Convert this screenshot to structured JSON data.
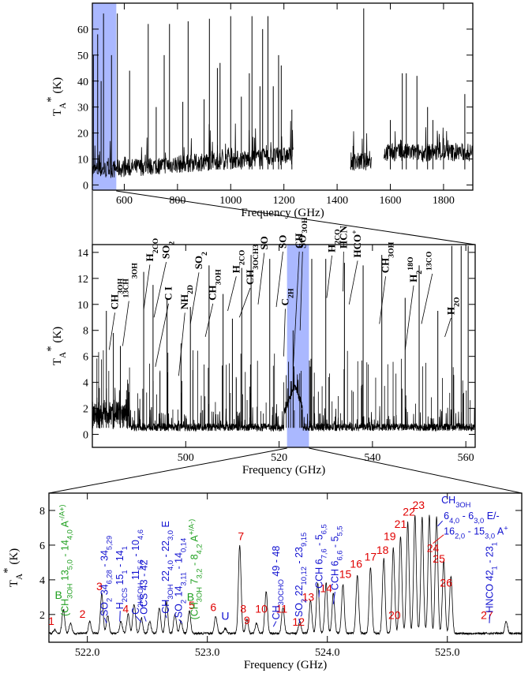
{
  "colors": {
    "highlight": "#aab8ff",
    "red": "#e00000",
    "blue": "#1010d0",
    "green": "#20a020"
  },
  "chart_data": [
    {
      "type": "line",
      "ylabel": "T_A* (K)",
      "xlabel": "Frequency (GHz)",
      "xlim": [
        480,
        1910
      ],
      "ylim": [
        -2,
        70
      ],
      "yticks": [
        0,
        10,
        20,
        30,
        40,
        50,
        60
      ],
      "xticks": [
        600,
        800,
        1000,
        1200,
        1400,
        1600,
        1800
      ],
      "highlight": [
        480,
        570
      ],
      "segments": [
        [
          480,
          1235
        ],
        [
          1450,
          1530
        ],
        [
          1575,
          1910
        ]
      ],
      "lines": [
        [
          484,
          50
        ],
        [
          500,
          58
        ],
        [
          513,
          40
        ],
        [
          522,
          66
        ],
        [
          552,
          50
        ],
        [
          574,
          66
        ],
        [
          620,
          44
        ],
        [
          690,
          62
        ],
        [
          720,
          30
        ],
        [
          750,
          50
        ],
        [
          770,
          62
        ],
        [
          820,
          32
        ],
        [
          840,
          63
        ],
        [
          900,
          33
        ],
        [
          920,
          64
        ],
        [
          950,
          45
        ],
        [
          960,
          47
        ],
        [
          1000,
          65
        ],
        [
          1040,
          34
        ],
        [
          1070,
          43
        ],
        [
          1080,
          65
        ],
        [
          1110,
          38
        ],
        [
          1120,
          60
        ],
        [
          1140,
          65
        ],
        [
          1160,
          38
        ],
        [
          1180,
          50
        ],
        [
          1190,
          46
        ],
        [
          1230,
          29
        ],
        [
          1460,
          15
        ],
        [
          1500,
          68
        ],
        [
          1600,
          25
        ],
        [
          1645,
          43
        ],
        [
          1660,
          43
        ],
        [
          1700,
          42
        ],
        [
          1740,
          30
        ],
        [
          1760,
          25
        ],
        [
          1800,
          18
        ],
        [
          1880,
          35
        ]
      ]
    },
    {
      "type": "line",
      "ylabel": "T_A* (K)",
      "xlabel": "Frequency (GHz)",
      "xlim": [
        480,
        562
      ],
      "ylim": [
        -1,
        14.6
      ],
      "yticks": [
        0,
        2,
        4,
        6,
        8,
        10,
        12,
        14
      ],
      "xticks": [
        500,
        520,
        540,
        560
      ],
      "highlight": [
        521.7,
        526.4
      ],
      "species": [
        "CH3OH",
        "13CH3OH",
        "H2CO",
        "SO2",
        "C I",
        "NH2D",
        "SO2",
        "CH3OH",
        "H2CO",
        "CH3OCH3",
        "SO",
        "SO",
        "C2H",
        "CH3OH",
        "SO",
        "H2CO",
        "HCN",
        "HCO+",
        "CH3OH",
        "H2 18O",
        "13CO",
        "H2O"
      ],
      "lines": [
        [
          483,
          9.5
        ],
        [
          484.5,
          7.8
        ],
        [
          486,
          6.8
        ],
        [
          491,
          12.5
        ],
        [
          493,
          11.5
        ],
        [
          496,
          10.5
        ],
        [
          499,
          7.0
        ],
        [
          501,
          9.8
        ],
        [
          505,
          13.0
        ],
        [
          508,
          10.8
        ],
        [
          510,
          8.9
        ],
        [
          512,
          12.8
        ],
        [
          514,
          13.8
        ],
        [
          518,
          13.5
        ],
        [
          523,
          8.0
        ],
        [
          527,
          13.5
        ],
        [
          530,
          13.5
        ],
        [
          534,
          13.2
        ],
        [
          538,
          13.0
        ],
        [
          542,
          13.8
        ],
        [
          547,
          10.5
        ],
        [
          550,
          13.0
        ],
        [
          554,
          9.5
        ],
        [
          557,
          14.5
        ],
        [
          559,
          14.5
        ],
        [
          560.5,
          14.5
        ]
      ]
    },
    {
      "type": "line",
      "ylabel": "T_A* (K)",
      "xlabel": "Frequency (GHz)",
      "xlim": [
        521.68,
        525.62
      ],
      "ylim": [
        0.4,
        9.0
      ],
      "yticks": [
        2,
        4,
        6,
        8
      ],
      "xticks": [
        522.0,
        523.0,
        524.0,
        525.0
      ],
      "peaks": [
        [
          521.73,
          1.1
        ],
        [
          521.8,
          2.3
        ],
        [
          521.86,
          1.5
        ],
        [
          522.02,
          1.6
        ],
        [
          522.12,
          3.2
        ],
        [
          522.17,
          1.9
        ],
        [
          522.28,
          1.6
        ],
        [
          522.34,
          2.0
        ],
        [
          522.39,
          2.6
        ],
        [
          522.45,
          1.8
        ],
        [
          522.52,
          1.6
        ],
        [
          522.6,
          2.4
        ],
        [
          522.66,
          2.7
        ],
        [
          522.73,
          2.0
        ],
        [
          522.78,
          1.6
        ],
        [
          522.85,
          2.2
        ],
        [
          523.07,
          1.9
        ],
        [
          523.15,
          1.2
        ],
        [
          523.27,
          6.0
        ],
        [
          523.33,
          1.7
        ],
        [
          523.41,
          1.5
        ],
        [
          523.49,
          3.3
        ],
        [
          523.63,
          2.4
        ],
        [
          523.77,
          1.6
        ],
        [
          523.86,
          2.8
        ],
        [
          523.92,
          3.8
        ],
        [
          523.99,
          3.8
        ],
        [
          524.05,
          3.2
        ],
        [
          524.13,
          3.7
        ],
        [
          524.25,
          4.3
        ],
        [
          524.36,
          4.7
        ],
        [
          524.47,
          5.2
        ],
        [
          524.55,
          5.8
        ],
        [
          524.61,
          6.5
        ],
        [
          524.67,
          7.3
        ],
        [
          524.73,
          7.7
        ],
        [
          524.79,
          7.6
        ],
        [
          524.85,
          7.7
        ],
        [
          524.91,
          7.6
        ],
        [
          524.97,
          5.1
        ],
        [
          525.03,
          4.2
        ],
        [
          525.49,
          1.6
        ]
      ],
      "red_labels": [
        [
          521.7,
          1.4,
          "1"
        ],
        [
          521.96,
          1.8,
          "2"
        ],
        [
          522.1,
          3.4,
          "3"
        ],
        [
          522.32,
          2.1,
          "4"
        ],
        [
          522.87,
          2.3,
          "5"
        ],
        [
          523.05,
          2.2,
          "6"
        ],
        [
          523.28,
          6.3,
          "7"
        ],
        [
          523.3,
          2.1,
          "8"
        ],
        [
          523.33,
          1.45,
          "9"
        ],
        [
          523.45,
          2.1,
          "10"
        ],
        [
          523.62,
          2.1,
          "11"
        ],
        [
          523.76,
          1.35,
          "12"
        ],
        [
          523.84,
          2.8,
          "13"
        ],
        [
          523.99,
          3.3,
          "14"
        ],
        [
          524.15,
          4.1,
          "15"
        ],
        [
          524.24,
          4.7,
          "16"
        ],
        [
          524.36,
          5.1,
          "17"
        ],
        [
          524.46,
          5.5,
          "18"
        ],
        [
          524.52,
          6.3,
          "19"
        ],
        [
          524.56,
          1.75,
          "20"
        ],
        [
          524.61,
          7.0,
          "21"
        ],
        [
          524.68,
          7.7,
          "22"
        ],
        [
          524.76,
          8.1,
          "23"
        ],
        [
          524.88,
          5.6,
          "24"
        ],
        [
          524.93,
          5.0,
          "25"
        ],
        [
          524.99,
          3.6,
          "26"
        ],
        [
          525.33,
          1.75,
          "27"
        ]
      ],
      "u_label": [
        523.15,
        1.7,
        "U"
      ],
      "b_labels": [
        [
          521.76,
          2.9,
          "B"
        ],
        [
          522.86,
          2.8,
          "B"
        ]
      ],
      "green_labels": [
        [
          521.78,
          3.9,
          "(CH3OH 13_5,0 - 14_4,0 A-/A+)"
        ],
        [
          522.72,
          4.9,
          "(CH3OH 7_3,2 - 8_4,2 A+/A-)"
        ]
      ],
      "blue_labels": [
        "SO2 34_6,28 - 34_5,29",
        "H2CS 15_1 - 14_1",
        "C2H5OH 11_5,6 - 10_4,6",
        "OCS 43 - 42",
        "CH3OH 22_4,0 - 22_3,0 E",
        "SO2 14_3,11 - 14_0,14",
        "CH3OCHO 49 - 48",
        "SO2 22_10,12 - 23_9,15",
        "CCH 6_7,6 - 5_6,5",
        "CCH 6_6,6 - 5_5,5",
        "CH3OH 6_4,0 - 6_3,0 E/-",
        "16_2,0 - 15_3,0 A+",
        "HNCO 42_1 - 23_1"
      ]
    }
  ]
}
